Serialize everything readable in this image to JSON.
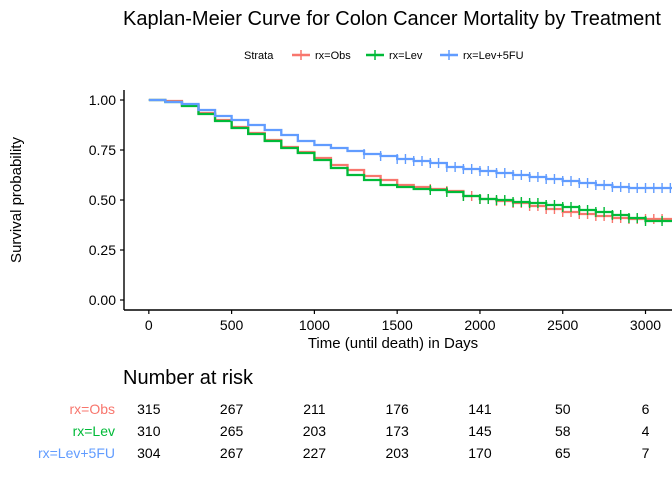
{
  "chart_data": {
    "type": "line",
    "title": "Kaplan-Meier Curve for Colon Cancer Mortality by Treatment",
    "xlabel": "Time (until death) in Days",
    "ylabel": "Survival probability",
    "xlim": [
      -150,
      3160
    ],
    "ylim": [
      -0.05,
      1.05
    ],
    "x_ticks": [
      0,
      500,
      1000,
      1500,
      2000,
      2500,
      3000
    ],
    "y_ticks": [
      0.0,
      0.25,
      0.5,
      0.75,
      1.0
    ],
    "y_tick_labels": [
      "0.00",
      "0.25",
      "0.50",
      "0.75",
      "1.00"
    ],
    "grid": false,
    "legend": {
      "title": "Strata",
      "position": "top"
    },
    "series": [
      {
        "name": "rx=Obs",
        "color": "#F8766D",
        "x": [
          0,
          100,
          200,
          300,
          400,
          500,
          600,
          700,
          800,
          900,
          1000,
          1100,
          1200,
          1300,
          1400,
          1500,
          1600,
          1700,
          1800,
          1900,
          2000,
          2100,
          2200,
          2300,
          2400,
          2500,
          2600,
          2700,
          2800,
          2900,
          3000,
          3160
        ],
        "y": [
          1.0,
          0.995,
          0.975,
          0.935,
          0.9,
          0.865,
          0.835,
          0.8,
          0.765,
          0.74,
          0.71,
          0.675,
          0.65,
          0.62,
          0.6,
          0.575,
          0.565,
          0.555,
          0.545,
          0.52,
          0.505,
          0.495,
          0.485,
          0.47,
          0.455,
          0.44,
          0.43,
          0.42,
          0.41,
          0.405,
          0.405,
          0.405
        ],
        "censor_x": [
          1700,
          1800,
          1900,
          1950,
          2000,
          2050,
          2100,
          2150,
          2200,
          2250,
          2300,
          2350,
          2400,
          2450,
          2500,
          2550,
          2600,
          2650,
          2700,
          2750,
          2800,
          2850,
          2900,
          2950,
          3000,
          3050,
          3100
        ]
      },
      {
        "name": "rx=Lev",
        "color": "#00BA38",
        "x": [
          0,
          100,
          200,
          300,
          400,
          500,
          600,
          700,
          800,
          900,
          1000,
          1100,
          1200,
          1300,
          1400,
          1500,
          1600,
          1700,
          1800,
          1900,
          2000,
          2100,
          2200,
          2300,
          2400,
          2500,
          2600,
          2700,
          2800,
          2900,
          3000,
          3160
        ],
        "y": [
          1.0,
          0.99,
          0.97,
          0.93,
          0.895,
          0.86,
          0.83,
          0.795,
          0.76,
          0.735,
          0.7,
          0.66,
          0.625,
          0.6,
          0.575,
          0.565,
          0.555,
          0.55,
          0.54,
          0.52,
          0.505,
          0.5,
          0.49,
          0.485,
          0.475,
          0.465,
          0.45,
          0.44,
          0.425,
          0.41,
          0.395,
          0.39
        ],
        "censor_x": [
          1700,
          1800,
          1900,
          2000,
          2050,
          2100,
          2150,
          2200,
          2250,
          2300,
          2350,
          2400,
          2450,
          2500,
          2550,
          2600,
          2650,
          2700,
          2750,
          2800,
          2850,
          2900,
          2950,
          3000,
          3100
        ]
      },
      {
        "name": "rx=Lev+5FU",
        "color": "#619CFF",
        "x": [
          0,
          100,
          200,
          300,
          400,
          500,
          600,
          700,
          800,
          900,
          1000,
          1100,
          1200,
          1300,
          1400,
          1500,
          1600,
          1700,
          1800,
          1900,
          2000,
          2100,
          2200,
          2300,
          2400,
          2500,
          2600,
          2700,
          2800,
          2900,
          3000,
          3160
        ],
        "y": [
          1.0,
          0.99,
          0.98,
          0.95,
          0.92,
          0.9,
          0.875,
          0.85,
          0.825,
          0.795,
          0.775,
          0.76,
          0.745,
          0.73,
          0.72,
          0.705,
          0.695,
          0.685,
          0.665,
          0.655,
          0.645,
          0.635,
          0.625,
          0.615,
          0.605,
          0.595,
          0.585,
          0.575,
          0.565,
          0.56,
          0.56,
          0.56
        ],
        "censor_x": [
          1300,
          1400,
          1500,
          1550,
          1600,
          1650,
          1700,
          1750,
          1800,
          1850,
          1900,
          1950,
          2000,
          2050,
          2100,
          2150,
          2200,
          2250,
          2300,
          2350,
          2400,
          2450,
          2500,
          2550,
          2600,
          2650,
          2700,
          2750,
          2800,
          2850,
          2900,
          2950,
          3000,
          3050,
          3100,
          3150
        ]
      }
    ]
  },
  "risk_table": {
    "title": "Number at risk",
    "rows": [
      {
        "label": "rx=Obs",
        "color": "#F8766D",
        "counts": [
          "315",
          "267",
          "211",
          "176",
          "141",
          "50",
          "6"
        ]
      },
      {
        "label": "rx=Lev",
        "color": "#00BA38",
        "counts": [
          "310",
          "265",
          "203",
          "173",
          "145",
          "58",
          "4"
        ]
      },
      {
        "label": "rx=Lev+5FU",
        "color": "#619CFF",
        "counts": [
          "304",
          "267",
          "227",
          "203",
          "170",
          "65",
          "7"
        ]
      }
    ]
  }
}
